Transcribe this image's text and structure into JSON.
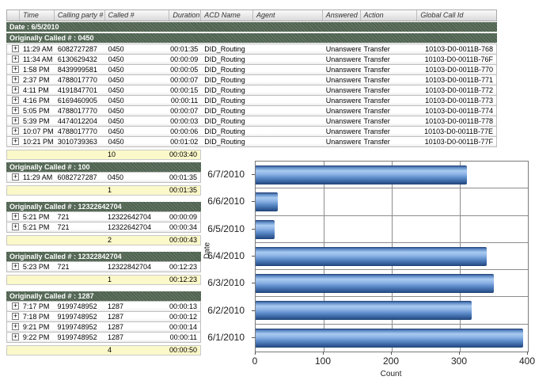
{
  "table": {
    "expand_glyph": "+",
    "columns": [
      {
        "key": "time",
        "label": "Time"
      },
      {
        "key": "calling",
        "label": "Calling party #"
      },
      {
        "key": "called",
        "label": "Called #"
      },
      {
        "key": "duration",
        "label": "Duration"
      },
      {
        "key": "acd",
        "label": "ACD Name"
      },
      {
        "key": "agent",
        "label": "Agent"
      },
      {
        "key": "answered",
        "label": "Answered"
      },
      {
        "key": "action",
        "label": "Action"
      },
      {
        "key": "globalid",
        "label": "Global Call Id"
      }
    ],
    "date_header": "Date : 6/5/2010",
    "main_group": {
      "header": "Originally Called # : 0450",
      "rows": [
        {
          "time": "11:29 AM",
          "calling": "6082727287",
          "called": "0450",
          "duration": "00:01:35",
          "acd": "DID_Routing",
          "agent": "",
          "answered": "Unanswered",
          "action": "Transfer",
          "globalid": "10103-D0-0011B-768"
        },
        {
          "time": "11:34 AM",
          "calling": "6130629432",
          "called": "0450",
          "duration": "00:00:09",
          "acd": "DID_Routing",
          "agent": "",
          "answered": "Unanswered",
          "action": "Transfer",
          "globalid": "10103-D0-0011B-76F"
        },
        {
          "time": "1:58 PM",
          "calling": "8439999581",
          "called": "0450",
          "duration": "00:00:05",
          "acd": "DID_Routing",
          "agent": "",
          "answered": "Unanswered",
          "action": "Transfer",
          "globalid": "10103-D0-0011B-770"
        },
        {
          "time": "2:37 PM",
          "calling": "4788017770",
          "called": "0450",
          "duration": "00:00:07",
          "acd": "DID_Routing",
          "agent": "",
          "answered": "Unanswered",
          "action": "Transfer",
          "globalid": "10103-D0-0011B-771"
        },
        {
          "time": "4:11 PM",
          "calling": "4191847701",
          "called": "0450",
          "duration": "00:00:15",
          "acd": "DID_Routing",
          "agent": "",
          "answered": "Unanswered",
          "action": "Transfer",
          "globalid": "10103-D0-0011B-772"
        },
        {
          "time": "4:16 PM",
          "calling": "6169460905",
          "called": "0450",
          "duration": "00:00:11",
          "acd": "DID_Routing",
          "agent": "",
          "answered": "Unanswered",
          "action": "Transfer",
          "globalid": "10103-D0-0011B-773"
        },
        {
          "time": "5:05 PM",
          "calling": "4788017770",
          "called": "0450",
          "duration": "00:00:07",
          "acd": "DID_Routing",
          "agent": "",
          "answered": "Unanswered",
          "action": "Transfer",
          "globalid": "10103-D0-0011B-774"
        },
        {
          "time": "5:39 PM",
          "calling": "4474012204",
          "called": "0450",
          "duration": "00:00:03",
          "acd": "DID_Routing",
          "agent": "",
          "answered": "Unanswered",
          "action": "Transfer",
          "globalid": "10103-D0-0011B-778"
        },
        {
          "time": "10:07 PM",
          "calling": "4788017770",
          "called": "0450",
          "duration": "00:00:06",
          "acd": "DID_Routing",
          "agent": "",
          "answered": "Unanswered",
          "action": "Transfer",
          "globalid": "10103-D0-0011B-77E"
        },
        {
          "time": "10:21 PM",
          "calling": "3010739363",
          "called": "0450",
          "duration": "00:01:02",
          "acd": "DID_Routing",
          "agent": "",
          "answered": "Unanswered",
          "action": "Transfer",
          "globalid": "10103-D0-0011B-77F"
        }
      ],
      "summary": {
        "count": "10",
        "duration": "00:03:40"
      }
    },
    "groups": [
      {
        "header": "Originally Called # : 100",
        "rows": [
          {
            "time": "11:29 AM",
            "calling": "6082727287",
            "called": "0450",
            "duration": "00:01:35"
          }
        ],
        "summary": {
          "count": "1",
          "duration": "00:01:35"
        }
      },
      {
        "header": "Originally Called # : 12322642704",
        "rows": [
          {
            "time": "5:21 PM",
            "calling": "721",
            "called": "12322642704",
            "duration": "00:00:09"
          },
          {
            "time": "5:21 PM",
            "calling": "721",
            "called": "12322642704",
            "duration": "00:00:34"
          }
        ],
        "summary": {
          "count": "2",
          "duration": "00:00:43"
        }
      },
      {
        "header": "Originally Called # : 12322842704",
        "rows": [
          {
            "time": "5:23 PM",
            "calling": "721",
            "called": "12322842704",
            "duration": "00:12:23"
          }
        ],
        "summary": {
          "count": "1",
          "duration": "00:12:23"
        }
      },
      {
        "header": "Originally Called # : 1287",
        "rows": [
          {
            "time": "7:17 PM",
            "calling": "9199748952",
            "called": "1287",
            "duration": "00:00:13"
          },
          {
            "time": "7:18 PM",
            "calling": "9199748952",
            "called": "1287",
            "duration": "00:00:12"
          },
          {
            "time": "9:21 PM",
            "calling": "9199748952",
            "called": "1287",
            "duration": "00:00:14"
          },
          {
            "time": "9:22 PM",
            "calling": "9199748952",
            "called": "1287",
            "duration": "00:00:11"
          }
        ],
        "summary": {
          "count": "4",
          "duration": "00:00:50"
        }
      }
    ]
  },
  "chart_data": {
    "type": "bar",
    "orientation": "horizontal",
    "title": "",
    "categories": [
      "6/7/2010",
      "6/6/2010",
      "6/5/2010",
      "6/4/2010",
      "6/3/2010",
      "6/2/2010",
      "6/1/2010"
    ],
    "values": [
      310,
      33,
      28,
      340,
      350,
      318,
      393
    ],
    "xlabel": "Count",
    "ylabel": "Date",
    "xlim": [
      0,
      400
    ],
    "xticks": [
      0,
      100,
      200,
      300,
      400
    ],
    "grid": true,
    "legend": false
  },
  "colors": {
    "group_header_bg": "#4f6350",
    "summary_bg": "#fbf8c9",
    "bar_highlight": "#a9cbf0",
    "bar_dark": "#274e86",
    "gridline": "#8c8c8c"
  }
}
